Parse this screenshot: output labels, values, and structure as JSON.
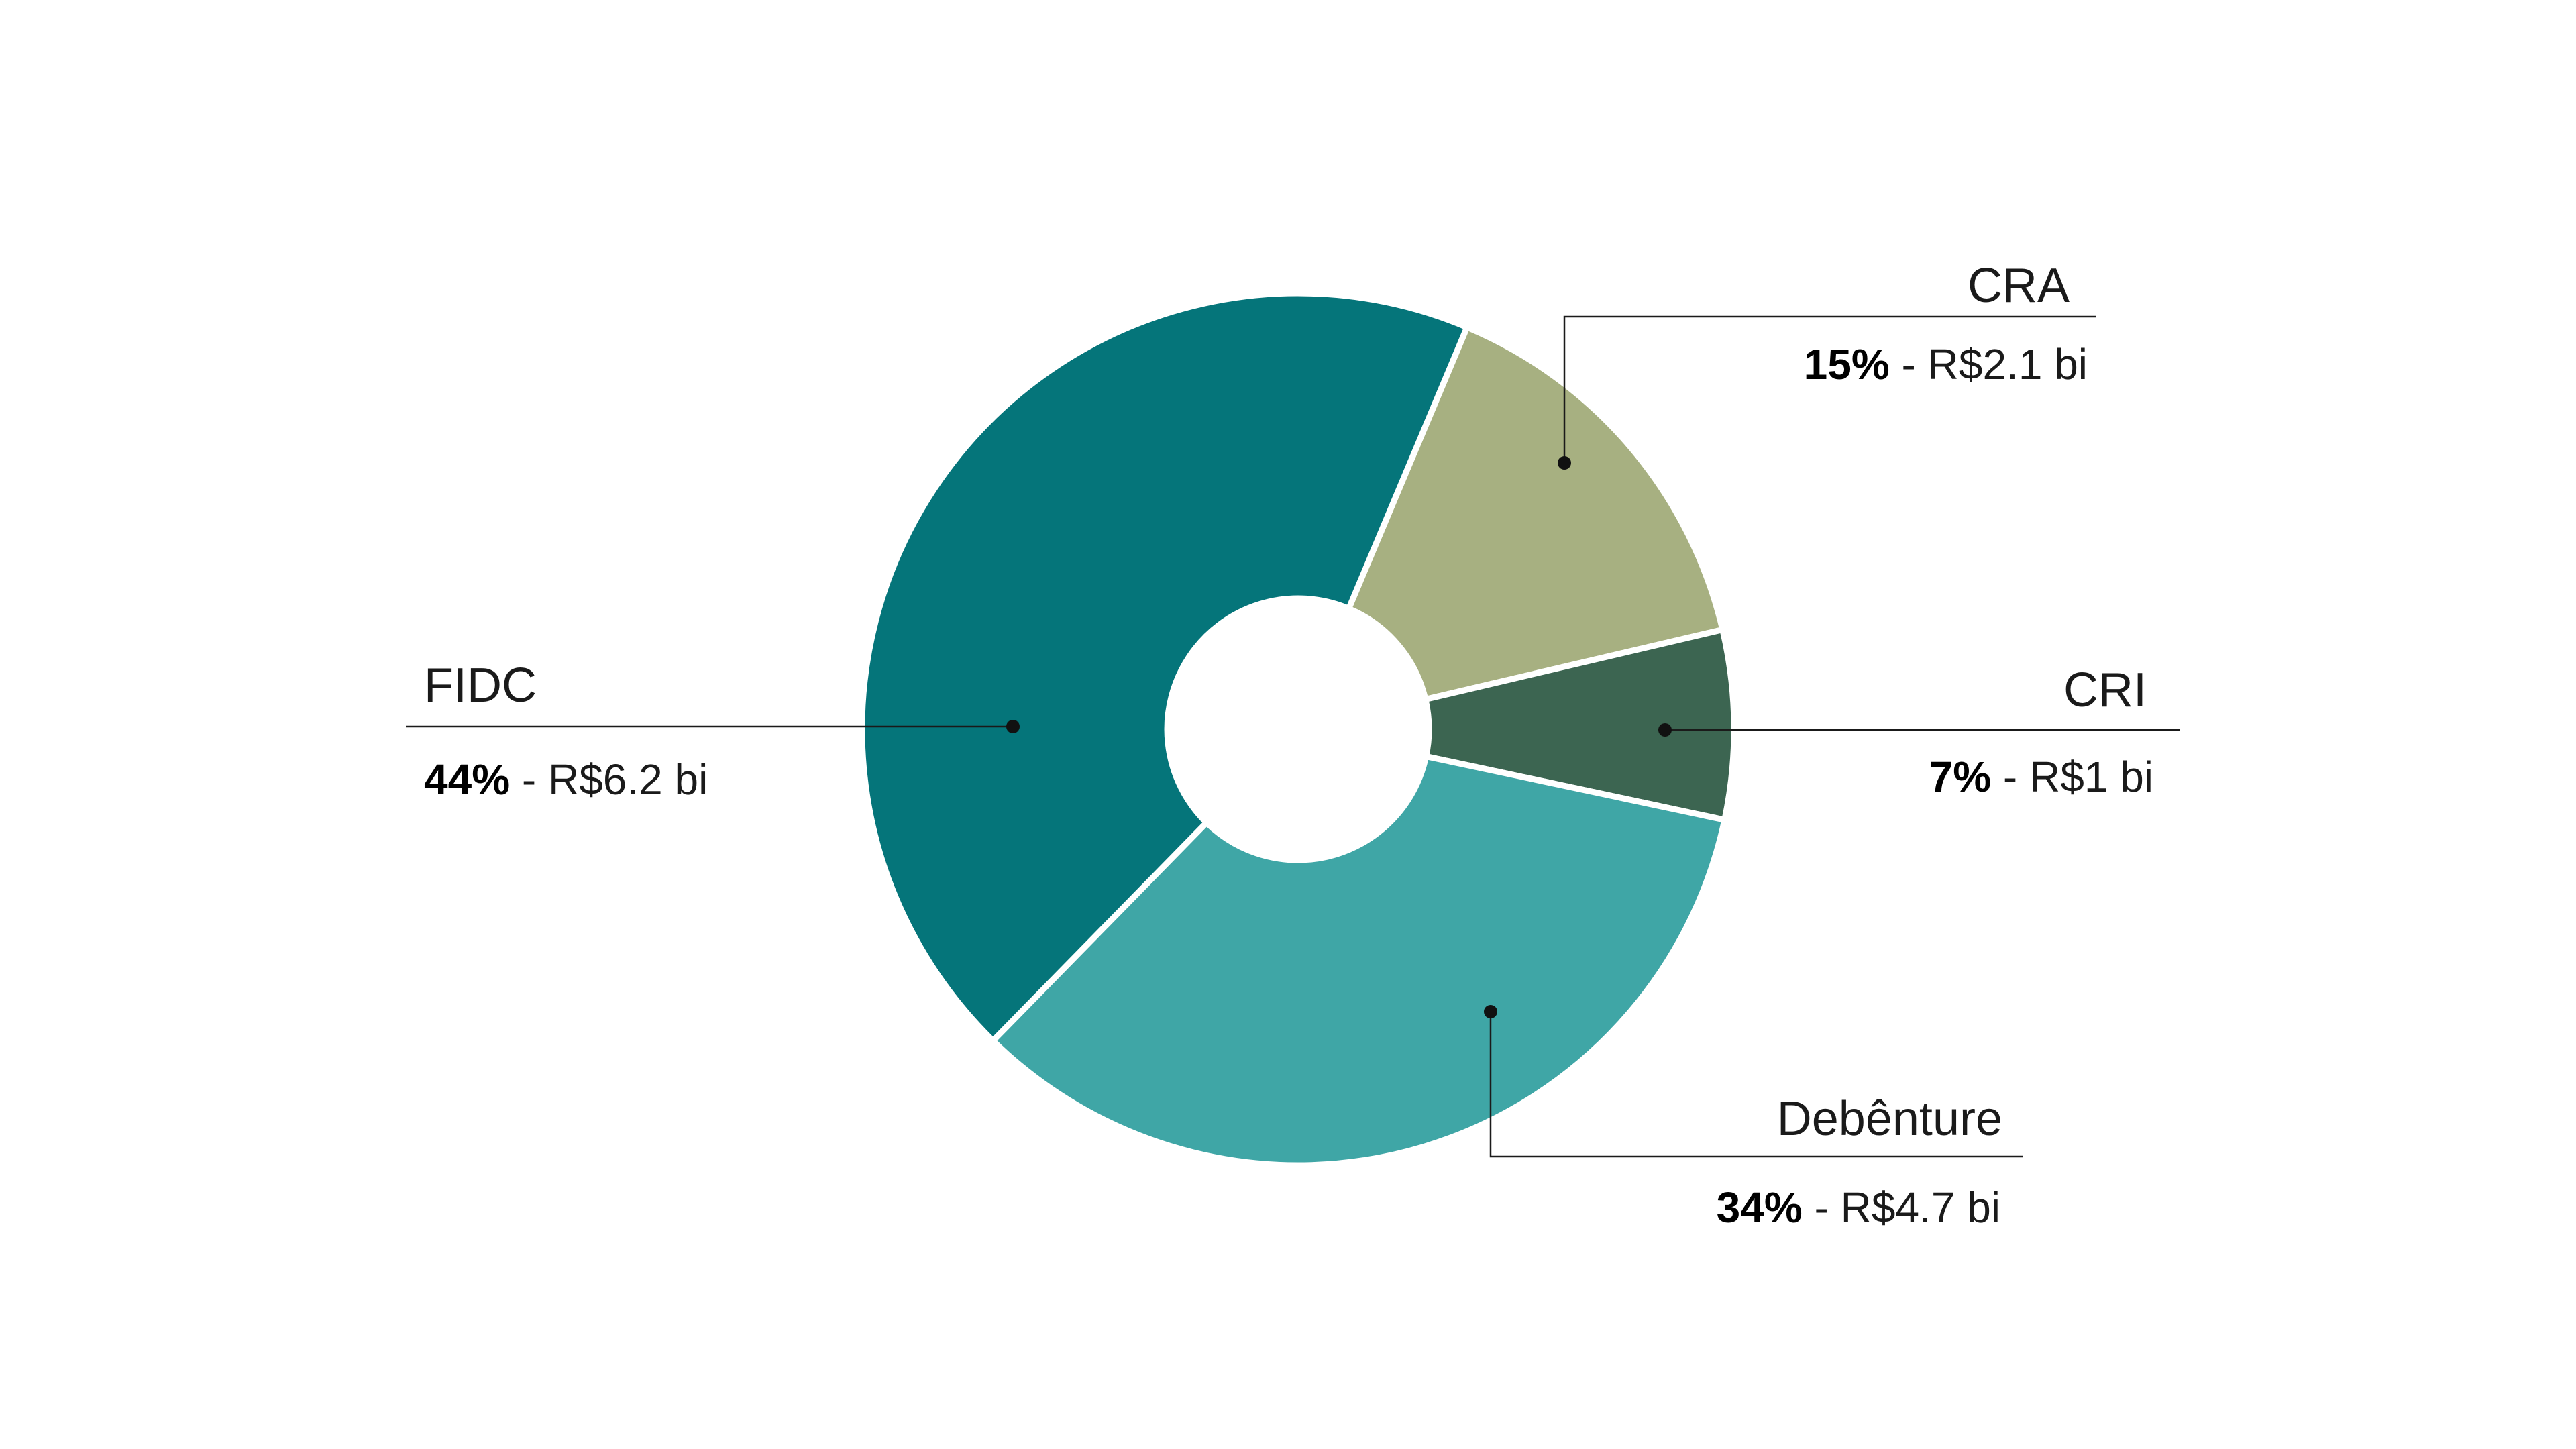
{
  "chart_data": {
    "type": "pie",
    "donut": true,
    "title": "",
    "slices": [
      {
        "label": "CRA",
        "percent": 15,
        "percent_label": "15%",
        "amount_label": "R$2.1 bi",
        "value": 2.1,
        "color": "#a7b081"
      },
      {
        "label": "CRI",
        "percent": 7,
        "percent_label": "7%",
        "amount_label": "R$1 bi",
        "value": 1.0,
        "color": "#3c6551"
      },
      {
        "label": "Debênture",
        "percent": 34,
        "percent_label": "34%",
        "amount_label": "R$4.7 bi",
        "value": 4.7,
        "color": "#3fa6a6"
      },
      {
        "label": "FIDC",
        "percent": 44,
        "percent_label": "44%",
        "amount_label": "R$6.2 bi",
        "value": 6.2,
        "color": "#05757a"
      }
    ],
    "separator": " - ",
    "legend": "none",
    "slice_border_color": "#ffffff"
  }
}
